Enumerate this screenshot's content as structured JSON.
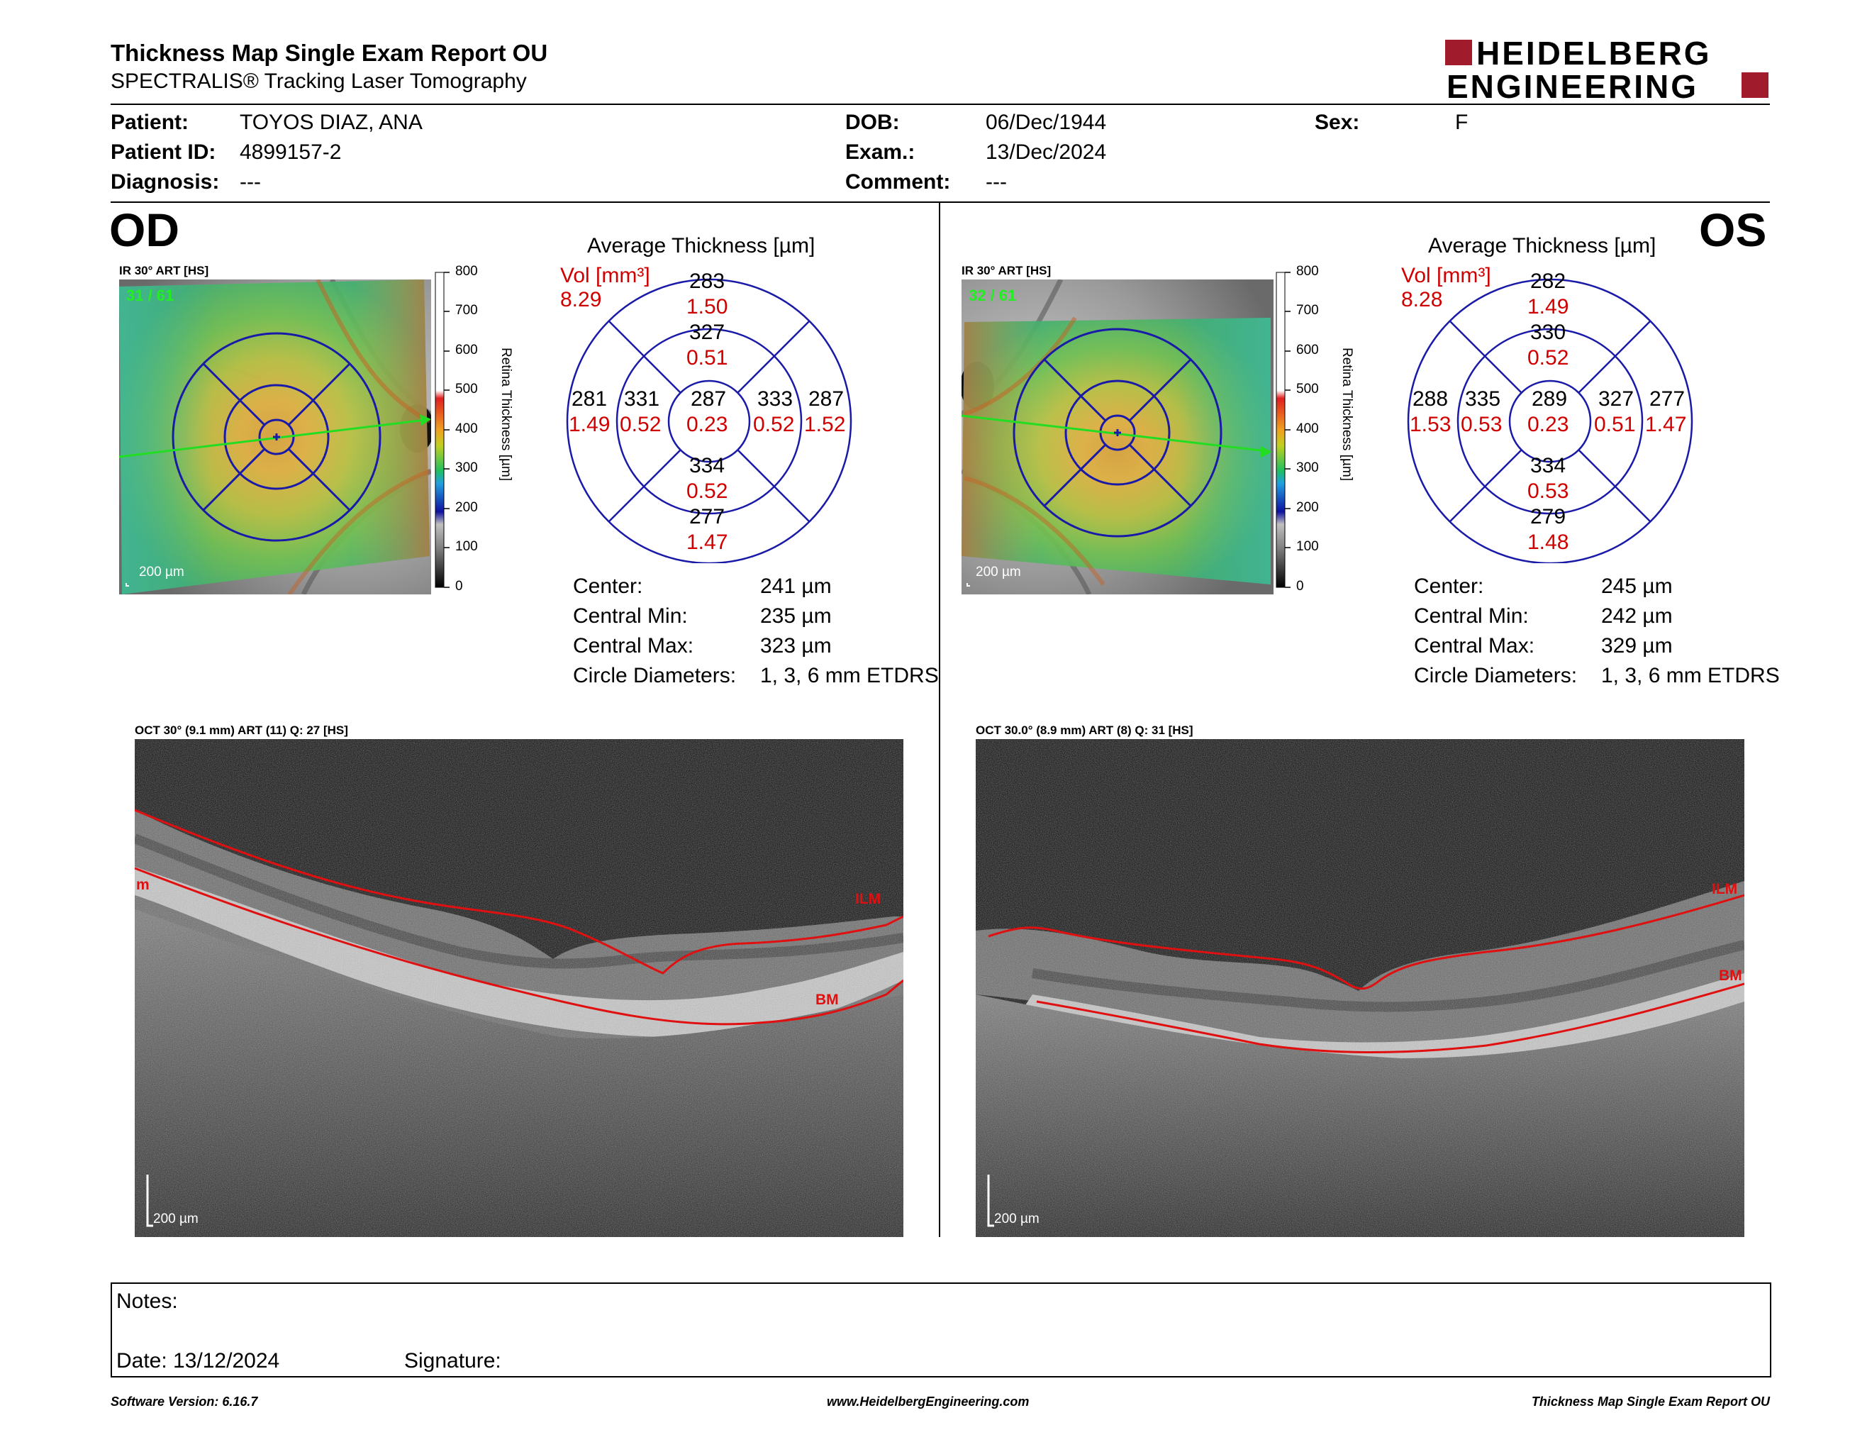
{
  "header": {
    "title": "Thickness Map Single Exam Report OU",
    "subtitle": "SPECTRALIS® Tracking Laser Tomography",
    "brand_line1": "HEIDELBERG",
    "brand_line2": "ENGINEERING"
  },
  "patient": {
    "patient_label": "Patient:",
    "patient_value": "TOYOS DIAZ, ANA",
    "id_label": "Patient ID:",
    "id_value": "4899157-2",
    "diagnosis_label": "Diagnosis:",
    "diagnosis_value": "---",
    "dob_label": "DOB:",
    "dob_value": "06/Dec/1944",
    "exam_label": "Exam.:",
    "exam_value": "13/Dec/2024",
    "comment_label": "Comment:",
    "comment_value": "---",
    "sex_label": "Sex:",
    "sex_value": "F"
  },
  "od": {
    "eye": "OD",
    "fundus_label": "IR 30° ART [HS]",
    "frame": "31 / 61",
    "scale_bar": "200 µm",
    "oct_label": "OCT 30° (9.1 mm) ART (11) Q: 27 [HS]",
    "oct_scale": "200 µm",
    "oct_layer_left": "m",
    "oct_ilm": "ILM",
    "oct_bm": "BM",
    "avg_title": "Average Thickness [µm]",
    "vol_label": "Vol [mm³]",
    "vol_value": "8.29",
    "etdrs": {
      "center": "287",
      "center_vol": "0.23",
      "inner_sup": "327",
      "inner_sup_vol": "0.51",
      "inner_inf": "334",
      "inner_inf_vol": "0.52",
      "inner_temp_left": "331",
      "inner_temp_left_vol": "0.52",
      "inner_right": "333",
      "inner_right_vol": "0.52",
      "outer_sup": "283",
      "outer_sup_vol": "1.50",
      "outer_inf": "277",
      "outer_inf_vol": "1.47",
      "outer_left": "281",
      "outer_left_vol": "1.49",
      "outer_right": "287",
      "outer_right_vol": "1.52"
    },
    "stats": {
      "center_label": "Center:",
      "center_value": "241 µm",
      "min_label": "Central Min:",
      "min_value": "235 µm",
      "max_label": "Central Max:",
      "max_value": "323 µm",
      "diam_label": "Circle Diameters:",
      "diam_value": "1, 3, 6 mm ETDRS"
    }
  },
  "os": {
    "eye": "OS",
    "fundus_label": "IR 30° ART [HS]",
    "frame": "32 / 61",
    "scale_bar": "200 µm",
    "oct_label": "OCT 30.0° (8.9 mm) ART (8) Q: 31 [HS]",
    "oct_scale": "200 µm",
    "oct_ilm": "ILM",
    "oct_bm": "BM",
    "avg_title": "Average Thickness [µm]",
    "vol_label": "Vol [mm³]",
    "vol_value": "8.28",
    "etdrs": {
      "center": "289",
      "center_vol": "0.23",
      "inner_sup": "330",
      "inner_sup_vol": "0.52",
      "inner_inf": "334",
      "inner_inf_vol": "0.53",
      "inner_temp_left": "335",
      "inner_temp_left_vol": "0.53",
      "inner_right": "327",
      "inner_right_vol": "0.51",
      "outer_sup": "282",
      "outer_sup_vol": "1.49",
      "outer_inf": "279",
      "outer_inf_vol": "1.48",
      "outer_left": "288",
      "outer_left_vol": "1.53",
      "outer_right": "277",
      "outer_right_vol": "1.47"
    },
    "stats": {
      "center_label": "Center:",
      "center_value": "245 µm",
      "min_label": "Central Min:",
      "min_value": "242 µm",
      "max_label": "Central Max:",
      "max_value": "329 µm",
      "diam_label": "Circle Diameters:",
      "diam_value": "1, 3, 6 mm ETDRS"
    }
  },
  "colorbar": {
    "ticks": [
      "800",
      "700",
      "600",
      "500",
      "400",
      "300",
      "200",
      "100",
      "0"
    ],
    "axis_label": "Retina  Thickness [µm]"
  },
  "notes": {
    "notes_label": "Notes:",
    "date_label": "Date: 13/12/2024",
    "signature_label": "Signature:"
  },
  "footer": {
    "software": "Software Version: 6.16.7",
    "url": "www.HeidelbergEngineering.com",
    "report": "Thickness Map Single Exam Report OU"
  },
  "colors": {
    "brand_red": "#a01c2c",
    "measure_red": "#d00000",
    "grid_blue": "#1a1aa8"
  }
}
